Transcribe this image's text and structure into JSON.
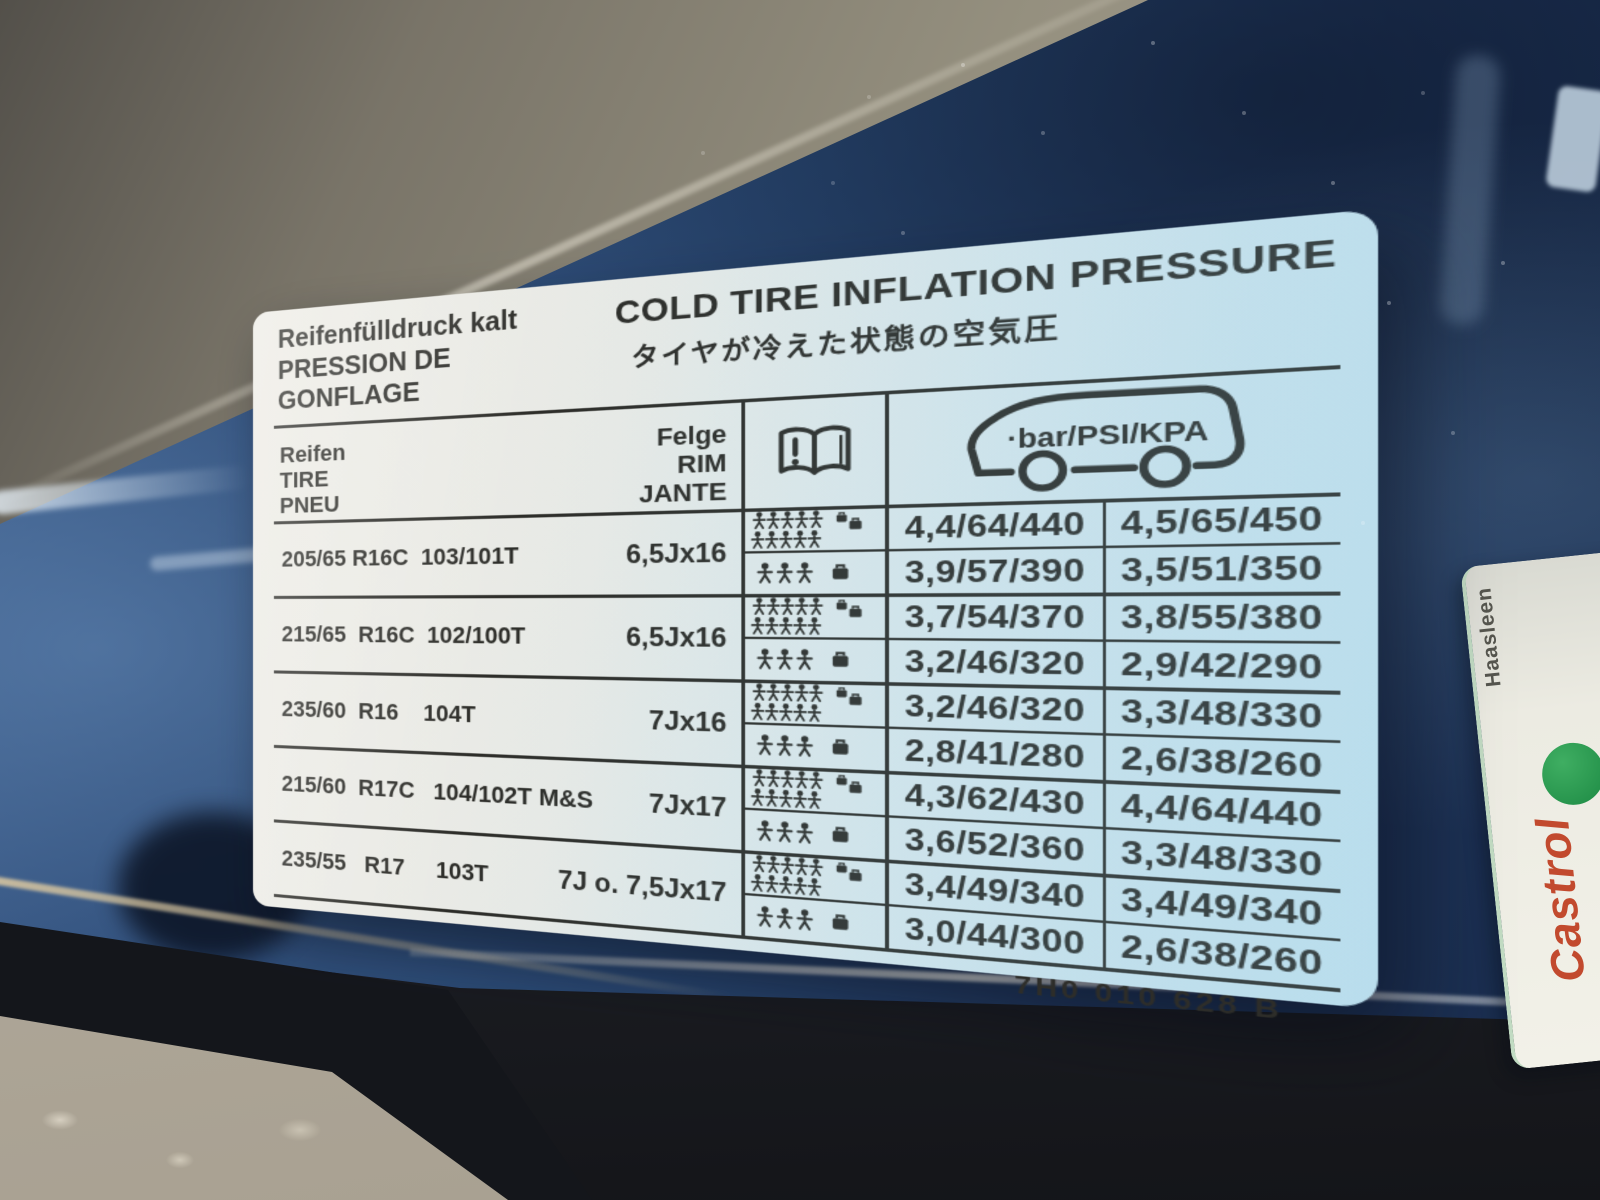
{
  "label": {
    "title_de": "Reifenfülldruck kalt",
    "title_fr": "PRESSION DE GONFLAGE",
    "title_en": "COLD TIRE INFLATION PRESSURE",
    "title_ja": "タイヤが冷えた状態の空気圧",
    "col_tire": {
      "de": "Reifen",
      "en": "TIRE",
      "fr": "PNEU"
    },
    "col_rim": {
      "de": "Felge",
      "en": "RIM",
      "fr": "JANTE"
    },
    "unit_label": "·bar/PSI/KPA",
    "icons": {
      "book": "owner-manual-book-icon",
      "van": "van-silhouette-icon",
      "full_load": "crowd-with-luggage-icon",
      "reduced_load": "three-passengers-with-luggage-icon"
    },
    "rows": [
      {
        "tire": "205/65 R16C  103/101T",
        "rim": "6,5Jx16",
        "full": [
          "4,4/64/440",
          "4,5/65/450"
        ],
        "reduced": [
          "3,9/57/390",
          "3,5/51/350"
        ]
      },
      {
        "tire": "215/65  R16C  102/100T",
        "rim": "6,5Jx16",
        "full": [
          "3,7/54/370",
          "3,8/55/380"
        ],
        "reduced": [
          "3,2/46/320",
          "2,9/42/290"
        ]
      },
      {
        "tire": "235/60  R16    104T",
        "rim": "7Jx16",
        "full": [
          "3,2/46/320",
          "3,3/48/330"
        ],
        "reduced": [
          "2,8/41/280",
          "2,6/38/260"
        ]
      },
      {
        "tire": "215/60  R17C   104/102T M&S",
        "rim": "7Jx17",
        "full": [
          "4,3/62/430",
          "4,4/64/440"
        ],
        "reduced": [
          "3,6/52/360",
          "3,3/48/330"
        ]
      },
      {
        "tire": "235/55   R17     103T",
        "rim": "7J o. 7,5Jx17",
        "full": [
          "3,4/49/340",
          "3,4/49/340"
        ],
        "reduced": [
          "3,0/44/300",
          "2,6/38/260"
        ]
      }
    ],
    "part_number": "7H0 010 628 B"
  },
  "side_sticker": {
    "brand": "Castrol",
    "dealer_text": "Haasleen"
  },
  "colors": {
    "body_paint": "#284670",
    "label_background": "#e8eae6",
    "label_tint": "#c4e3f0",
    "ink": "#2d2d29",
    "castrol_red": "#c24a2e",
    "castrol_green": "#1d8a44"
  }
}
